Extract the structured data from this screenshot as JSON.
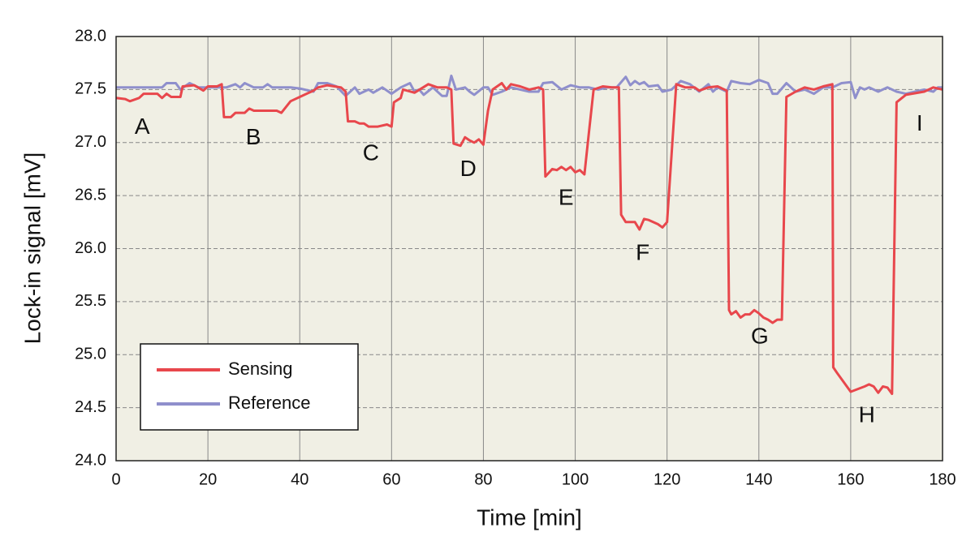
{
  "chart_data": {
    "type": "line",
    "xlabel": "Time [min]",
    "ylabel": "Lock-in signal [mV]",
    "xlim": [
      0,
      180
    ],
    "ylim": [
      24,
      28
    ],
    "xticks": [
      0,
      20,
      40,
      60,
      80,
      100,
      120,
      140,
      160,
      180
    ],
    "yticks": [
      {
        "value": 24,
        "label": "24.0"
      },
      24.5,
      {
        "value": 25,
        "label": "25.0"
      },
      25.5,
      {
        "value": 26,
        "label": "26.0"
      },
      26.5,
      {
        "value": 27,
        "label": "27.0"
      },
      27.5,
      {
        "value": 28,
        "label": "28.0"
      }
    ],
    "grid": true,
    "legend_position": "lower left",
    "series": [
      {
        "name": "Sensing",
        "color": "#e8474c",
        "x": [
          0,
          2,
          3,
          5,
          6,
          9,
          10,
          11,
          12,
          14,
          14.5,
          17,
          19,
          20,
          22,
          23,
          23.5,
          25,
          26,
          28,
          29,
          30,
          35,
          36,
          38,
          41,
          43,
          44,
          46,
          49,
          50,
          50.5,
          52,
          53,
          54,
          55,
          57,
          59,
          60,
          60.5,
          62,
          62.5,
          65,
          68,
          70,
          72,
          73,
          73.5,
          75,
          76,
          77,
          78,
          79,
          80,
          81,
          82,
          84,
          85,
          86,
          88,
          90,
          92,
          93,
          93.5,
          95,
          96,
          97,
          98,
          99,
          100,
          101,
          102,
          103,
          104,
          106,
          108,
          109.5,
          110,
          111,
          113,
          114,
          115,
          116,
          118,
          119,
          120,
          122,
          124,
          126,
          127,
          129,
          131,
          133,
          133.5,
          134,
          135,
          136,
          137,
          138,
          139,
          140,
          141,
          142,
          143,
          144,
          145,
          146,
          148,
          150,
          152,
          154,
          156,
          156.2,
          157,
          160,
          163,
          164,
          165,
          166,
          167,
          168,
          169,
          170,
          172,
          176,
          178,
          180
        ],
        "values": [
          27.42,
          27.41,
          27.39,
          27.42,
          27.46,
          27.46,
          27.42,
          27.46,
          27.43,
          27.43,
          27.53,
          27.54,
          27.49,
          27.53,
          27.53,
          27.55,
          27.24,
          27.24,
          27.28,
          27.28,
          27.32,
          27.3,
          27.3,
          27.28,
          27.39,
          27.45,
          27.49,
          27.52,
          27.54,
          27.52,
          27.48,
          27.2,
          27.2,
          27.18,
          27.18,
          27.15,
          27.15,
          27.17,
          27.15,
          27.38,
          27.42,
          27.5,
          27.47,
          27.55,
          27.52,
          27.52,
          27.5,
          26.99,
          26.97,
          27.05,
          27.02,
          27.0,
          27.03,
          26.98,
          27.3,
          27.5,
          27.56,
          27.5,
          27.55,
          27.53,
          27.5,
          27.52,
          27.5,
          26.68,
          26.75,
          26.74,
          26.77,
          26.74,
          26.77,
          26.72,
          26.74,
          26.7,
          27.1,
          27.5,
          27.53,
          27.52,
          27.52,
          26.32,
          26.25,
          26.25,
          26.18,
          26.28,
          26.27,
          26.23,
          26.2,
          26.25,
          27.55,
          27.52,
          27.52,
          27.49,
          27.52,
          27.53,
          27.49,
          25.42,
          25.38,
          25.41,
          25.35,
          25.38,
          25.38,
          25.42,
          25.39,
          25.35,
          25.33,
          25.3,
          25.33,
          25.33,
          27.43,
          27.48,
          27.52,
          27.5,
          27.53,
          27.55,
          24.88,
          24.83,
          24.65,
          24.7,
          24.72,
          24.7,
          24.64,
          24.7,
          24.69,
          24.63,
          27.38,
          27.45,
          27.48,
          27.52,
          27.5
        ]
      },
      {
        "name": "Reference",
        "color": "#8f8fcc",
        "x": [
          0,
          10,
          11,
          13,
          14,
          16,
          18,
          20,
          24,
          26,
          27,
          28,
          30,
          32,
          33,
          34,
          38,
          40,
          43,
          44,
          46,
          48,
          50,
          52,
          53,
          55,
          56,
          58,
          60,
          62,
          64,
          65,
          66,
          67,
          69,
          71,
          72,
          73,
          74,
          76,
          77,
          78,
          80,
          81,
          82,
          84,
          86,
          88,
          90,
          92,
          93,
          95,
          97,
          99,
          101,
          103,
          105,
          107,
          109,
          111,
          112,
          113,
          114,
          115,
          116,
          118,
          119,
          121,
          123,
          125,
          127,
          129,
          130,
          131,
          133,
          134,
          136,
          138,
          140,
          142,
          143,
          144,
          146,
          148,
          150,
          152,
          154,
          156,
          158,
          160,
          161,
          162,
          163,
          164,
          166,
          168,
          170,
          172,
          174,
          176,
          178,
          179,
          180
        ],
        "values": [
          27.52,
          27.52,
          27.56,
          27.56,
          27.5,
          27.56,
          27.52,
          27.52,
          27.52,
          27.55,
          27.52,
          27.56,
          27.52,
          27.52,
          27.55,
          27.52,
          27.52,
          27.51,
          27.48,
          27.56,
          27.56,
          27.53,
          27.44,
          27.52,
          27.46,
          27.5,
          27.47,
          27.52,
          27.46,
          27.52,
          27.56,
          27.48,
          27.5,
          27.45,
          27.52,
          27.44,
          27.44,
          27.63,
          27.5,
          27.52,
          27.48,
          27.45,
          27.52,
          27.52,
          27.45,
          27.48,
          27.52,
          27.5,
          27.48,
          27.48,
          27.56,
          27.57,
          27.5,
          27.54,
          27.52,
          27.52,
          27.5,
          27.52,
          27.52,
          27.62,
          27.54,
          27.58,
          27.55,
          27.57,
          27.53,
          27.54,
          27.48,
          27.5,
          27.58,
          27.55,
          27.48,
          27.55,
          27.48,
          27.52,
          27.48,
          27.58,
          27.56,
          27.55,
          27.59,
          27.56,
          27.46,
          27.46,
          27.56,
          27.48,
          27.5,
          27.46,
          27.52,
          27.52,
          27.56,
          27.57,
          27.42,
          27.52,
          27.5,
          27.52,
          27.48,
          27.52,
          27.48,
          27.46,
          27.48,
          27.5,
          27.48,
          27.52,
          27.52
        ]
      }
    ],
    "annotations": [
      {
        "text": "A",
        "x": 5.7,
        "y": 27.14
      },
      {
        "text": "B",
        "x": 29.9,
        "y": 27.04
      },
      {
        "text": "C",
        "x": 55.5,
        "y": 26.89
      },
      {
        "text": "D",
        "x": 76.7,
        "y": 26.74
      },
      {
        "text": "E",
        "x": 98,
        "y": 26.47
      },
      {
        "text": "F",
        "x": 114.7,
        "y": 25.95
      },
      {
        "text": "G",
        "x": 140.2,
        "y": 25.16
      },
      {
        "text": "H",
        "x": 163.5,
        "y": 24.42
      },
      {
        "text": "I",
        "x": 175,
        "y": 27.17
      }
    ]
  }
}
